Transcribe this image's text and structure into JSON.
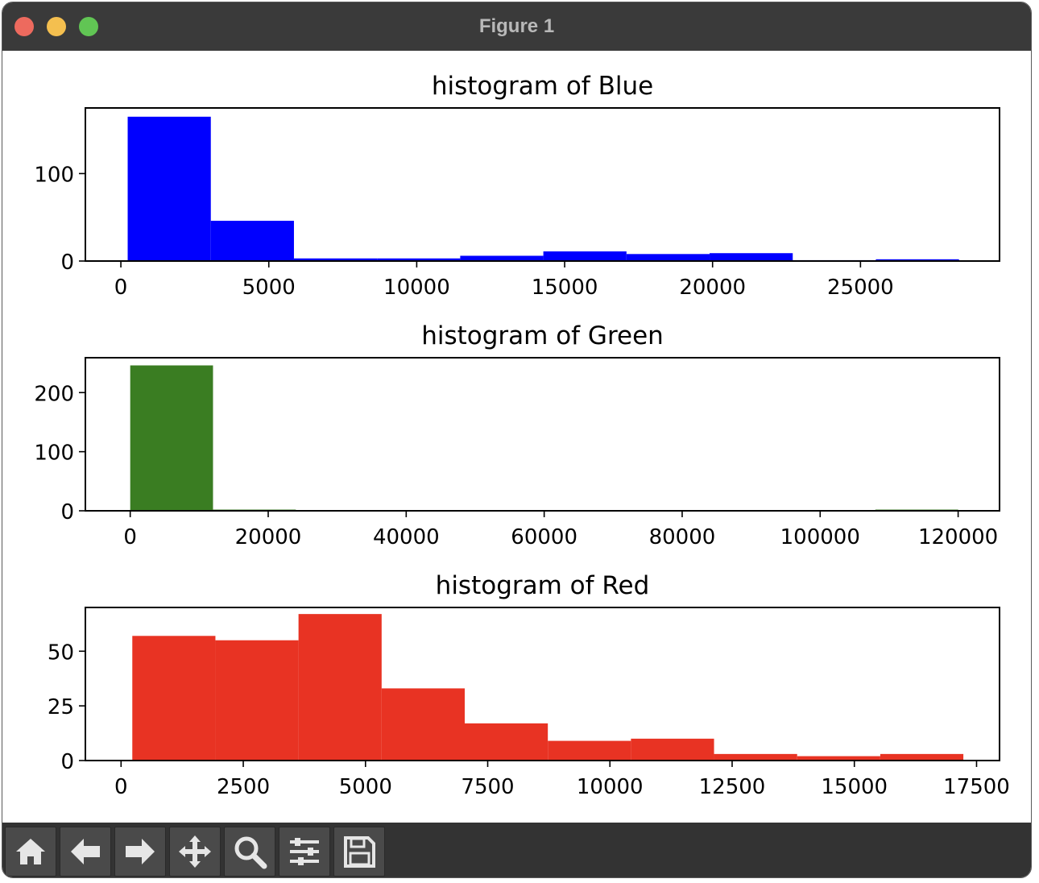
{
  "window": {
    "title": "Figure 1"
  },
  "toolbar": {
    "buttons": [
      {
        "name": "home-button",
        "icon": "home-icon"
      },
      {
        "name": "back-button",
        "icon": "arrow-left-icon"
      },
      {
        "name": "forward-button",
        "icon": "arrow-right-icon"
      },
      {
        "name": "pan-button",
        "icon": "move-icon"
      },
      {
        "name": "zoom-button",
        "icon": "magnifier-icon"
      },
      {
        "name": "configure-subplots-button",
        "icon": "sliders-icon"
      },
      {
        "name": "save-button",
        "icon": "floppy-disk-icon"
      }
    ]
  },
  "chart_data": [
    {
      "type": "bar",
      "title": "histogram of Blue",
      "color": "#0000ff",
      "xlim": [
        -1200,
        29700
      ],
      "ylim": [
        0,
        175
      ],
      "xticks": [
        0,
        5000,
        10000,
        15000,
        20000,
        25000
      ],
      "yticks": [
        0,
        100
      ],
      "bin_edges": [
        230,
        3040,
        5850,
        8660,
        11470,
        14280,
        17090,
        19900,
        22710,
        25520,
        28330
      ],
      "values": [
        165,
        46,
        3,
        3,
        6,
        11,
        8,
        9,
        1,
        2
      ]
    },
    {
      "type": "bar",
      "title": "histogram of Green",
      "color": "#3a7d22",
      "xlim": [
        -6500,
        126000
      ],
      "ylim": [
        0,
        259
      ],
      "xticks": [
        0,
        20000,
        40000,
        60000,
        80000,
        100000,
        120000
      ],
      "yticks": [
        0,
        100,
        200
      ],
      "bin_edges": [
        0,
        12000,
        24000,
        36000,
        48000,
        60000,
        72000,
        84000,
        96000,
        108000,
        120000
      ],
      "values": [
        246,
        2,
        0,
        0,
        0,
        0,
        0,
        0,
        0,
        2
      ]
    },
    {
      "type": "bar",
      "title": "histogram of Red",
      "color": "#e83323",
      "xlim": [
        -730,
        17970
      ],
      "ylim": [
        0,
        70
      ],
      "xticks": [
        0,
        2500,
        5000,
        7500,
        10000,
        12500,
        15000,
        17500
      ],
      "yticks": [
        0,
        25,
        50
      ],
      "bin_edges": [
        230,
        1930,
        3630,
        5330,
        7030,
        8730,
        10430,
        12130,
        13830,
        15530,
        17230
      ],
      "values": [
        57,
        55,
        67,
        33,
        17,
        9,
        10,
        3,
        2,
        3
      ]
    }
  ]
}
